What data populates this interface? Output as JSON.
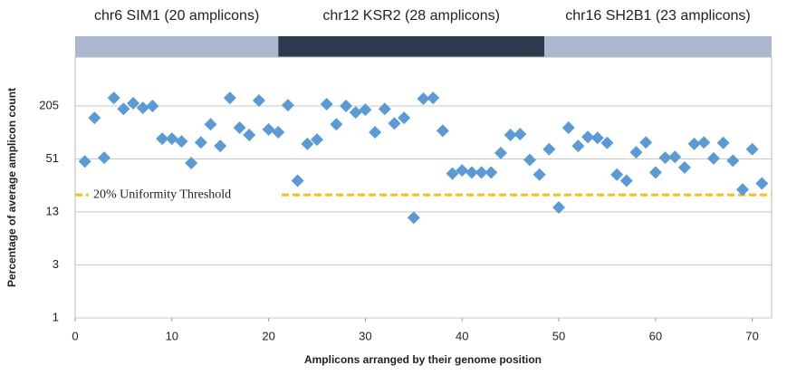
{
  "chart_data": {
    "type": "scatter",
    "xlabel": "Amplicons arranged by their genome position",
    "ylabel": "Percentage of average amplicon count",
    "xlim": [
      0,
      72
    ],
    "xticks": [
      0,
      10,
      20,
      30,
      40,
      50,
      60,
      70
    ],
    "ylim": [
      0.8,
      737
    ],
    "log_y": true,
    "yticks": [
      {
        "value": 0.8,
        "label": "1"
      },
      {
        "value": 3.2,
        "label": "3"
      },
      {
        "value": 12.8,
        "label": "13"
      },
      {
        "value": 51.2,
        "label": "51"
      },
      {
        "value": 204.8,
        "label": "205"
      }
    ],
    "grid": true,
    "regions": [
      {
        "label": "chr6 SIM1 (20 amplicons)",
        "start": 0,
        "end": 21,
        "color": "#aab9cd"
      },
      {
        "label": "chr12 KSR2 (28 amplicons)",
        "start": 21,
        "end": 48.5,
        "color": "#2c3a4d"
      },
      {
        "label": "chr16 SH2B1 (23 amplicons)",
        "start": 48.5,
        "end": 72,
        "color": "#aab9cd"
      }
    ],
    "threshold": {
      "value": 20,
      "label": "20% Uniformity Threshold",
      "color": "#f2c11b"
    },
    "color": "#5b9bd5",
    "x": [
      1,
      2,
      3,
      4,
      5,
      6,
      7,
      8,
      9,
      10,
      11,
      12,
      13,
      14,
      15,
      16,
      17,
      18,
      19,
      20,
      21,
      22,
      23,
      24,
      25,
      26,
      27,
      28,
      29,
      30,
      31,
      32,
      33,
      34,
      35,
      36,
      37,
      38,
      39,
      40,
      41,
      42,
      43,
      44,
      45,
      46,
      47,
      48,
      49,
      50,
      51,
      52,
      53,
      54,
      55,
      56,
      57,
      58,
      59,
      60,
      61,
      62,
      63,
      64,
      65,
      66,
      67,
      68,
      69,
      70,
      71
    ],
    "y": [
      48,
      150,
      53,
      253,
      190,
      220,
      195,
      205,
      87,
      87,
      81,
      46,
      79,
      127,
      72,
      253,
      116,
      96,
      236,
      111,
      103,
      209,
      29,
      76,
      85,
      215,
      127,
      205,
      173,
      186,
      103,
      190,
      130,
      150,
      11,
      248,
      253,
      107,
      35,
      38,
      36,
      36,
      36,
      60,
      96,
      98,
      50,
      34,
      66,
      14.4,
      116,
      72,
      91,
      89,
      78,
      34,
      29,
      61,
      79,
      36,
      53,
      54,
      41,
      76,
      79,
      52,
      78,
      49,
      23,
      66,
      27
    ]
  }
}
